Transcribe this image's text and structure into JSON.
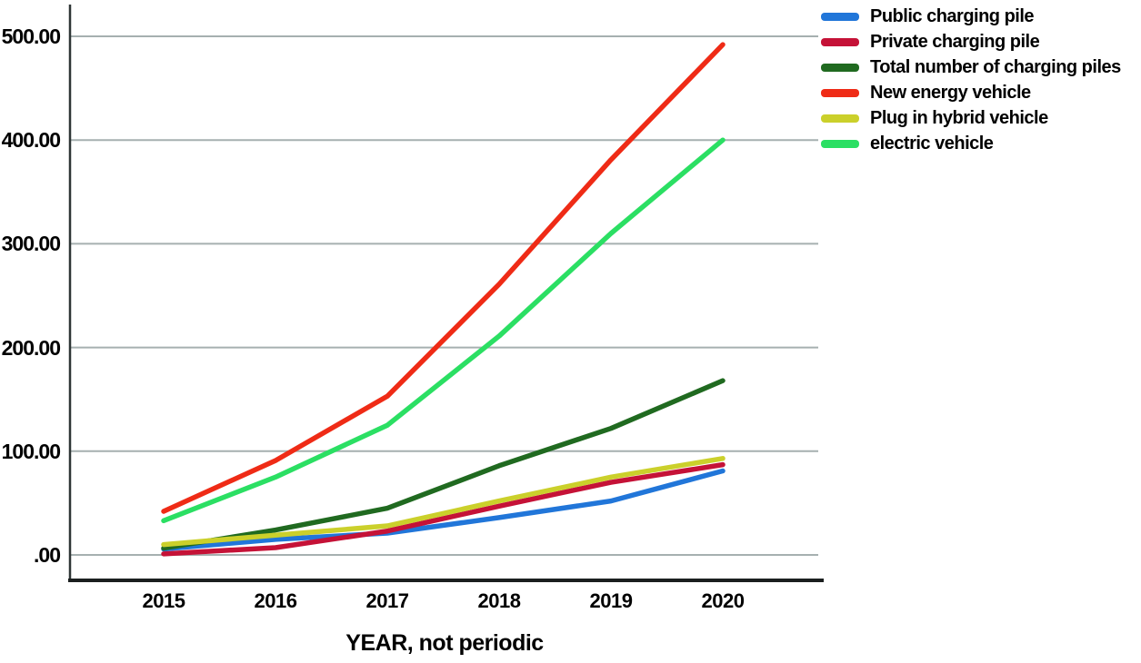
{
  "chart_data": {
    "type": "line",
    "title": "",
    "xlabel": "YEAR, not periodic",
    "ylabel": "",
    "categories": [
      "2015",
      "2016",
      "2017",
      "2018",
      "2019",
      "2020"
    ],
    "y_ticks": [
      {
        "label": ".00",
        "value": 0
      },
      {
        "label": "100.00",
        "value": 100
      },
      {
        "label": "200.00",
        "value": 200
      },
      {
        "label": "300.00",
        "value": 300
      },
      {
        "label": "400.00",
        "value": 400
      },
      {
        "label": "500.00",
        "value": 500
      }
    ],
    "ylim": [
      0,
      530
    ],
    "grid": "horizontal",
    "legend_position": "top-right",
    "series": [
      {
        "name": "Public charging pile",
        "color": "#2176d9",
        "values": [
          5.7,
          15,
          21,
          36,
          52,
          81
        ]
      },
      {
        "name": "Private charging pile",
        "color": "#c51237",
        "values": [
          1,
          7,
          23,
          47,
          70,
          87
        ]
      },
      {
        "name": "Total number of charging piles",
        "color": "#206a20",
        "values": [
          6.5,
          24,
          45,
          86,
          122,
          168
        ]
      },
      {
        "name": "New energy vehicle",
        "color": "#ef2b16",
        "values": [
          42,
          91,
          153,
          261,
          381,
          492
        ]
      },
      {
        "name": "Plug in hybrid vehicle",
        "color": "#cbd02b",
        "values": [
          10,
          19,
          28,
          52,
          75,
          93
        ]
      },
      {
        "name": "electric vehicle",
        "color": "#2bdf63",
        "values": [
          33,
          75,
          125,
          211,
          310,
          400
        ]
      }
    ]
  },
  "style": {
    "grid_color": "#a6b0b0",
    "axis_color": "#2e3535",
    "bottom_axis_color": "#1b1f1f",
    "text_color": "#000000",
    "background": "#ffffff"
  }
}
